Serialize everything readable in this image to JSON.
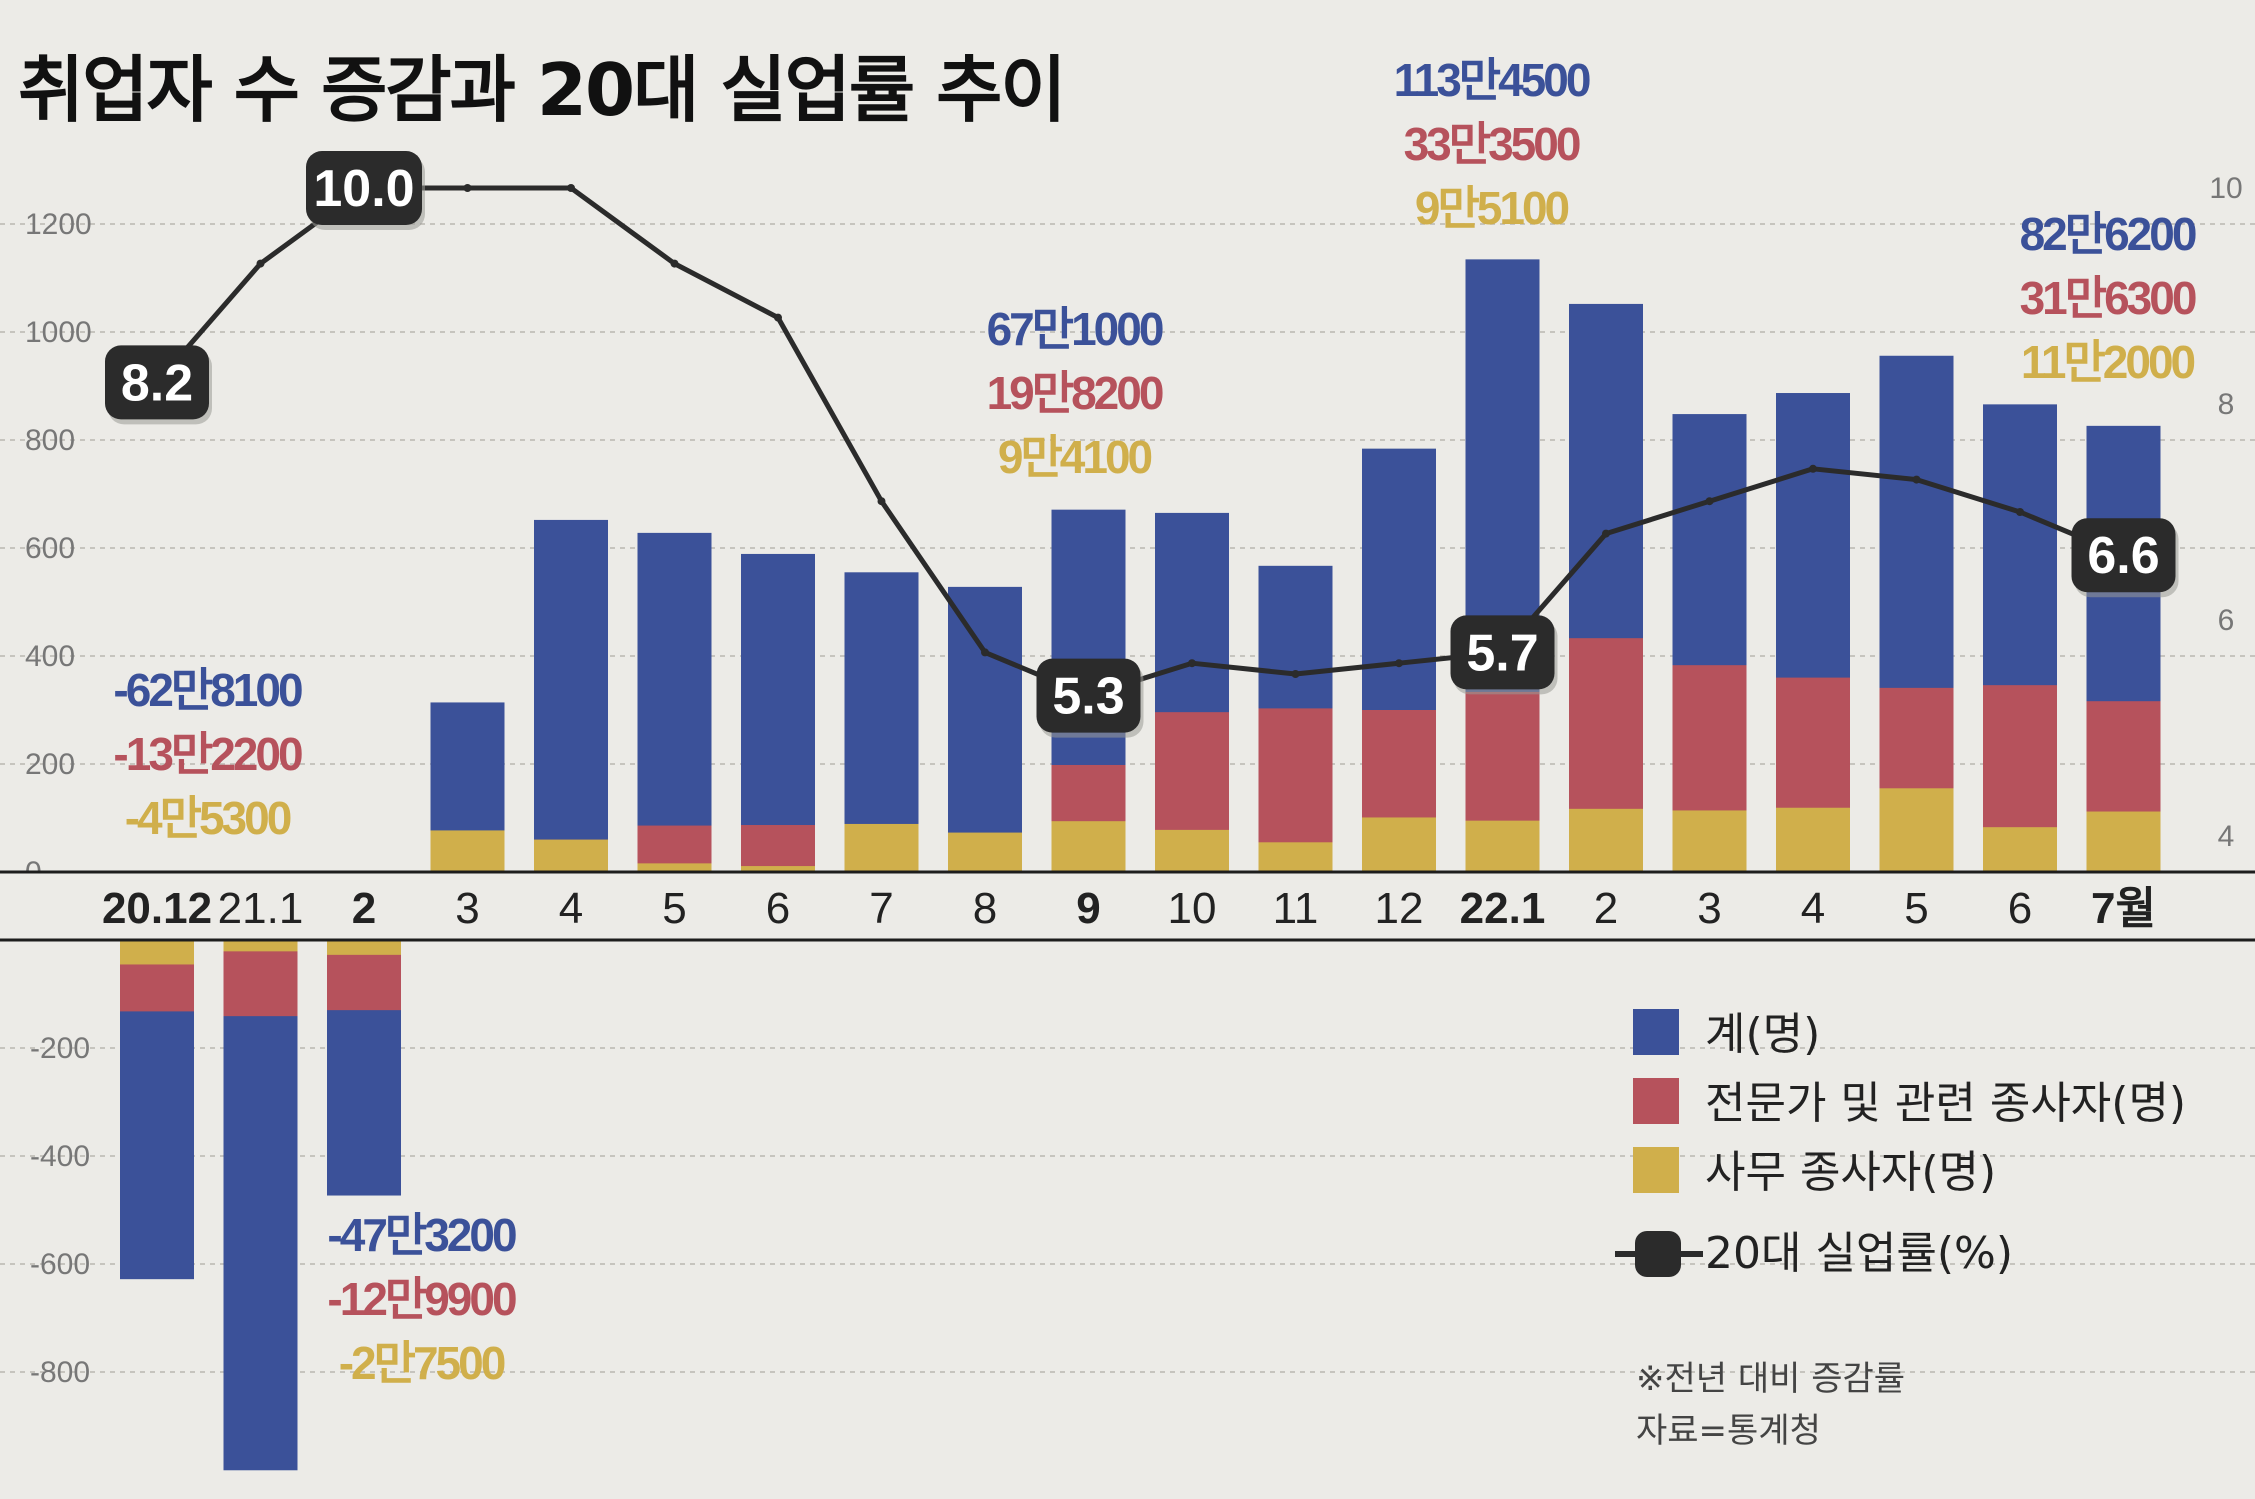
{
  "title": "취업자 수 증감과 20대 실업률 추이",
  "colors": {
    "background": "#ecebe7",
    "total": "#3b5199",
    "professional": "#b6525c",
    "office": "#d0af4b",
    "line": "#2b2b2b",
    "label_box": "#2b2b2b"
  },
  "chart_data": {
    "type": "bar",
    "categories": [
      "20.12",
      "21.1",
      "2",
      "3",
      "4",
      "5",
      "6",
      "7",
      "8",
      "9",
      "10",
      "11",
      "12",
      "22.1",
      "2",
      "3",
      "4",
      "5",
      "6",
      "7월"
    ],
    "bold_categories": [
      "20.12",
      "2",
      "9",
      "22.1",
      "7월"
    ],
    "series": [
      {
        "name": "계(명)",
        "axis": "left",
        "values": [
          -628.1,
          -982,
          -473.2,
          314,
          652,
          628,
          589,
          555,
          528,
          671,
          665,
          567,
          784,
          1134.5,
          1052,
          848,
          887,
          956,
          866,
          826.2
        ]
      },
      {
        "name": "전문가 및 관련 종사자(명)",
        "axis": "left",
        "values": [
          -132.2,
          -141,
          -129.9,
          45,
          60,
          86,
          87,
          46,
          63,
          198.2,
          296,
          303,
          300,
          333.5,
          433,
          383,
          360,
          341,
          346,
          316.3
        ]
      },
      {
        "name": "사무 종사자(명)",
        "axis": "left",
        "values": [
          -45.3,
          -21,
          -27.5,
          77,
          60,
          16,
          11,
          89,
          73,
          94.1,
          78,
          55,
          101,
          95.1,
          117,
          114,
          119,
          155,
          83,
          112
        ]
      },
      {
        "name": "20대 실업률(%)",
        "type": "line",
        "axis": "right",
        "values": [
          8.2,
          9.3,
          10.0,
          10.0,
          10.0,
          9.3,
          8.8,
          7.1,
          5.7,
          5.3,
          5.6,
          5.5,
          5.6,
          5.7,
          6.8,
          7.1,
          7.4,
          7.3,
          7.0,
          6.6
        ]
      }
    ],
    "ylim_left": [
      -1000,
      1200
    ],
    "yticks_left": [
      "1200",
      "1000",
      "800",
      "600",
      "400",
      "200",
      "0",
      "-200",
      "-400",
      "-600",
      "-800"
    ],
    "ylim_right": [
      4,
      10
    ],
    "yticks_right": [
      "10",
      "8",
      "6",
      "4"
    ],
    "grid": true,
    "legend_position": "bottom-right",
    "annotations": [
      {
        "index": 0,
        "lines": [
          "-62만8100",
          "-13만2200",
          "-4만5300"
        ]
      },
      {
        "index": 2,
        "lines": [
          "-47만3200",
          "-12만9900",
          "-2만7500"
        ]
      },
      {
        "index": 9,
        "lines": [
          "67만1000",
          "19만8200",
          "9만4100"
        ]
      },
      {
        "index": 13,
        "lines": [
          "113만4500",
          "33만3500",
          "9만5100"
        ]
      },
      {
        "index": 19,
        "lines": [
          "82만6200",
          "31만6300",
          "11만2000"
        ]
      }
    ],
    "rate_labels": [
      {
        "index": 0,
        "text": "8.2"
      },
      {
        "index": 2,
        "text": "10.0"
      },
      {
        "index": 9,
        "text": "5.3"
      },
      {
        "index": 13,
        "text": "5.7"
      },
      {
        "index": 19,
        "text": "6.6"
      }
    ]
  },
  "legend": [
    {
      "label": "계(명)",
      "swatch": "total"
    },
    {
      "label": "전문가 및 관련 종사자(명)",
      "swatch": "professional"
    },
    {
      "label": "사무 종사자(명)",
      "swatch": "office"
    },
    {
      "label": "20대 실업률(%)",
      "swatch": "line"
    }
  ],
  "notes": [
    "※전년 대비 증감률",
    "자료=통계청"
  ]
}
